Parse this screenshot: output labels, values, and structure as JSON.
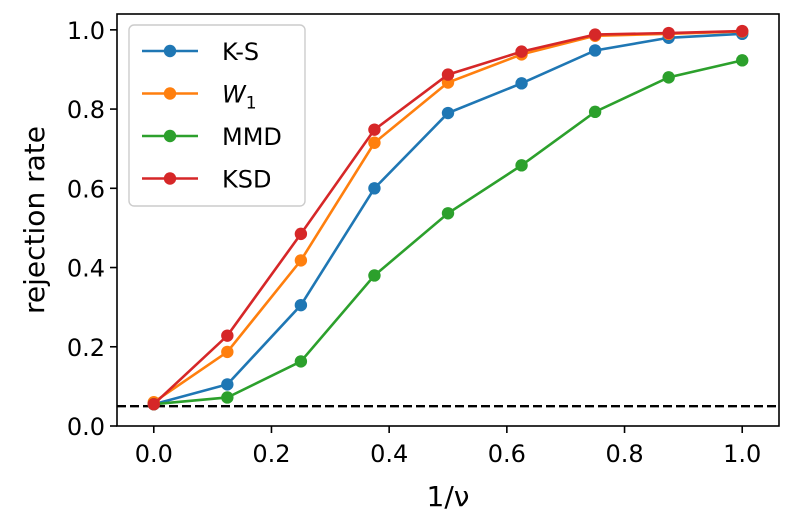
{
  "chart_data": {
    "type": "line",
    "title": "",
    "xlabel": "1/ν",
    "ylabel": "rejection rate",
    "xlim": [
      -0.0625,
      1.0625
    ],
    "ylim": [
      0.0,
      1.04
    ],
    "grid": false,
    "xticks": [
      0.0,
      0.2,
      0.4,
      0.6,
      0.8,
      1.0
    ],
    "yticks": [
      0.0,
      0.2,
      0.4,
      0.6,
      0.8,
      1.0
    ],
    "xtick_labels": [
      "0.0",
      "0.2",
      "0.4",
      "0.6",
      "0.8",
      "1.0"
    ],
    "ytick_labels": [
      "0.0",
      "0.2",
      "0.4",
      "0.6",
      "0.8",
      "1.0"
    ],
    "x": [
      0.0,
      0.125,
      0.25,
      0.375,
      0.5,
      0.625,
      0.75,
      0.875,
      1.0
    ],
    "series": [
      {
        "name": "K-S",
        "color": "#1f77b4",
        "values": [
          0.055,
          0.105,
          0.305,
          0.6,
          0.79,
          0.865,
          0.948,
          0.98,
          0.99
        ]
      },
      {
        "name": "W",
        "subscript": "1",
        "color": "#ff7f0e",
        "values": [
          0.06,
          0.187,
          0.418,
          0.715,
          0.867,
          0.938,
          0.985,
          0.99,
          0.996
        ]
      },
      {
        "name": "MMD",
        "color": "#2ca02c",
        "values": [
          0.055,
          0.072,
          0.163,
          0.38,
          0.537,
          0.658,
          0.793,
          0.88,
          0.923
        ]
      },
      {
        "name": "KSD",
        "color": "#d62728",
        "values": [
          0.055,
          0.228,
          0.485,
          0.748,
          0.887,
          0.945,
          0.988,
          0.992,
          0.997
        ]
      }
    ],
    "reference_line": {
      "y": 0.05,
      "style": "dashed",
      "color": "#000000"
    },
    "legend_position": "top-left"
  }
}
